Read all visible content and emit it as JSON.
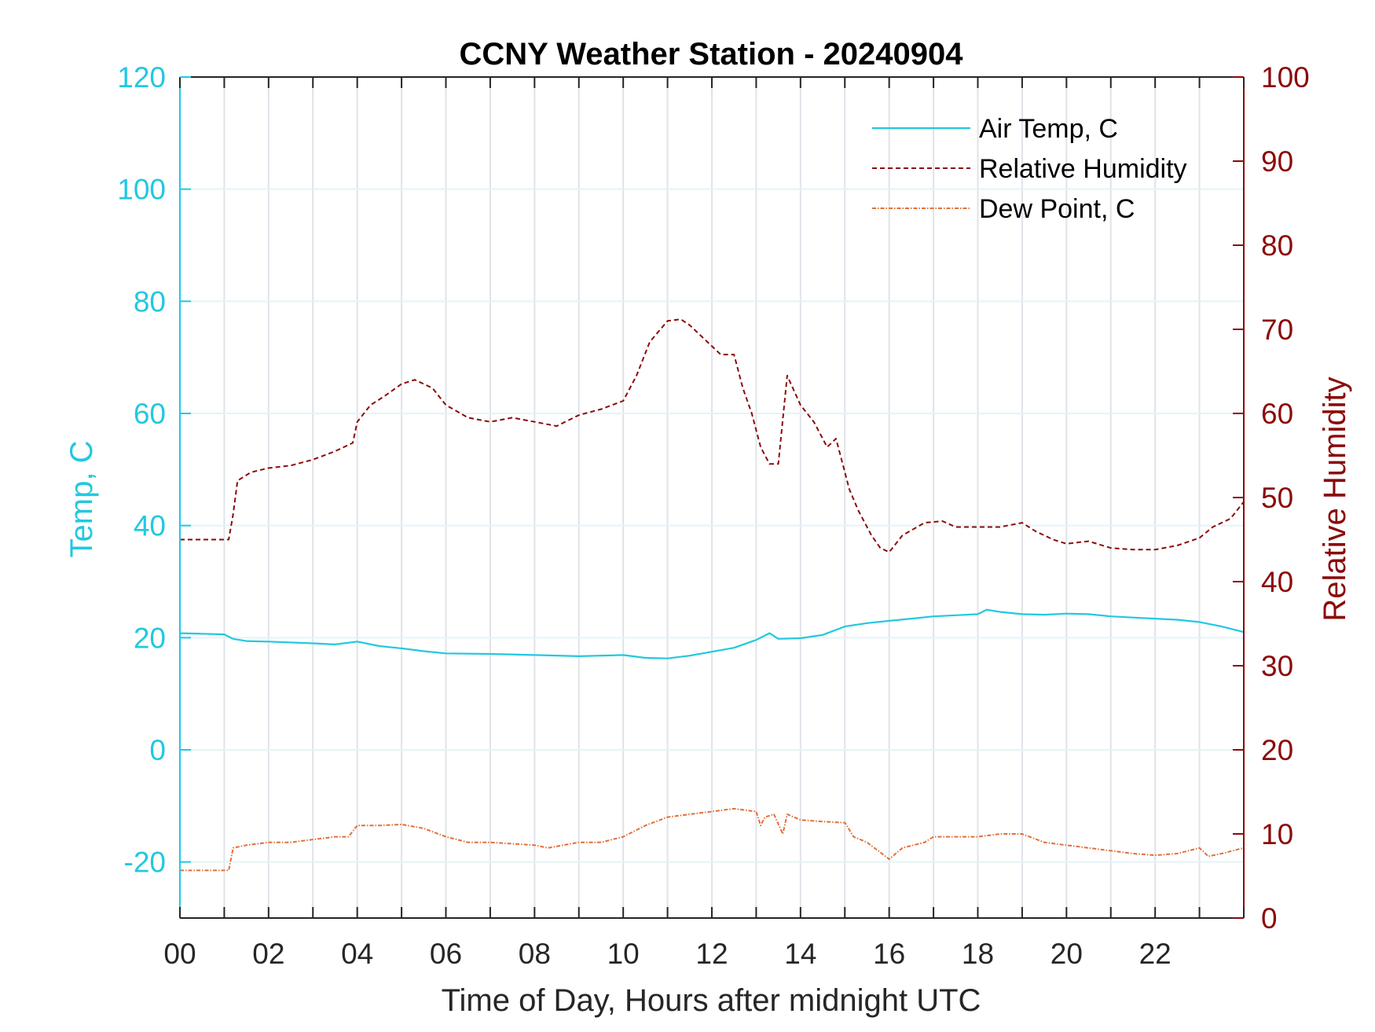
{
  "chart_data": {
    "type": "line",
    "title": "CCNY Weather Station - 20240904",
    "xlabel": "Time of Day, Hours after midnight UTC",
    "ylabel_left": "Temp, C",
    "ylabel_right": "Relative Humidity",
    "xlim": [
      0,
      24
    ],
    "ylim_left": [
      -30,
      120
    ],
    "ylim_right": [
      0,
      100
    ],
    "x_ticks": [
      0,
      2,
      4,
      6,
      8,
      10,
      12,
      14,
      16,
      18,
      20,
      22
    ],
    "x_tick_labels": [
      "00",
      "02",
      "04",
      "06",
      "08",
      "10",
      "12",
      "14",
      "16",
      "18",
      "20",
      "22"
    ],
    "y_left_ticks": [
      -20,
      0,
      20,
      40,
      60,
      80,
      100,
      120
    ],
    "y_left_tick_labels": [
      "-20",
      "0",
      "20",
      "40",
      "60",
      "80",
      "100",
      "120"
    ],
    "y_right_ticks": [
      0,
      10,
      20,
      30,
      40,
      50,
      60,
      70,
      80,
      90,
      100
    ],
    "y_right_tick_labels": [
      "0",
      "10",
      "20",
      "30",
      "40",
      "50",
      "60",
      "70",
      "80",
      "90",
      "100"
    ],
    "grid": true,
    "legend_position": "top-right",
    "colors": {
      "air_temp": "#22c8e0",
      "humidity": "#8b0a0a",
      "dew_point": "#e0703a",
      "left_axis": "#22c8e0",
      "right_axis": "#8b0a0a",
      "grid": "#dfe4ea"
    },
    "series": [
      {
        "name": "Air Temp, C",
        "axis": "left",
        "style": "solid",
        "x": [
          0,
          0.5,
          1.0,
          1.2,
          1.5,
          2,
          3,
          3.5,
          4,
          4.5,
          5,
          5.5,
          6,
          7,
          8,
          9,
          10,
          10.5,
          11,
          11.5,
          12,
          12.5,
          13,
          13.3,
          13.5,
          14,
          14.5,
          15,
          15.5,
          16,
          16.5,
          17,
          17.5,
          18,
          18.2,
          18.5,
          19,
          19.5,
          20,
          20.5,
          21,
          21.5,
          22,
          22.5,
          23,
          23.5,
          24
        ],
        "values": [
          20.8,
          20.7,
          20.6,
          19.8,
          19.4,
          19.3,
          19.0,
          18.8,
          19.3,
          18.5,
          18.1,
          17.6,
          17.2,
          17.1,
          16.9,
          16.7,
          16.9,
          16.4,
          16.3,
          16.8,
          17.5,
          18.2,
          19.6,
          20.8,
          19.8,
          19.9,
          20.5,
          22.0,
          22.6,
          23.0,
          23.4,
          23.8,
          24.0,
          24.2,
          25.0,
          24.6,
          24.2,
          24.1,
          24.3,
          24.2,
          23.8,
          23.6,
          23.4,
          23.2,
          22.8,
          22.0,
          21.0
        ]
      },
      {
        "name": "Relative Humidity",
        "axis": "right",
        "style": "dashed",
        "x": [
          0,
          0.5,
          1.1,
          1.2,
          1.3,
          1.6,
          2.0,
          2.5,
          3.0,
          3.5,
          3.9,
          4.0,
          4.3,
          4.6,
          5.0,
          5.3,
          5.7,
          6.0,
          6.5,
          7.0,
          7.5,
          8.0,
          8.5,
          9.0,
          9.5,
          10.0,
          10.3,
          10.6,
          11.0,
          11.3,
          11.5,
          11.8,
          12.2,
          12.5,
          12.7,
          12.9,
          13.1,
          13.3,
          13.5,
          13.7,
          14.0,
          14.3,
          14.6,
          14.8,
          15.0,
          15.1,
          15.3,
          15.6,
          15.8,
          16.0,
          16.3,
          16.8,
          17.2,
          17.5,
          18.0,
          18.5,
          19.0,
          19.3,
          19.7,
          20.0,
          20.5,
          21.0,
          21.5,
          22.0,
          22.5,
          23.0,
          23.3,
          23.7,
          24.0
        ],
        "values": [
          45,
          45,
          45,
          48,
          52,
          53,
          53.5,
          53.8,
          54.5,
          55.5,
          56.5,
          59,
          61,
          62,
          63.5,
          64,
          63,
          61,
          59.5,
          59,
          59.5,
          59,
          58.5,
          59.8,
          60.5,
          61.5,
          64.5,
          68.5,
          71,
          71.2,
          70.5,
          69,
          67,
          67,
          63,
          60,
          56,
          54,
          54,
          64.5,
          61,
          59,
          56,
          57,
          53,
          51,
          48.5,
          45.5,
          44,
          43.5,
          45.5,
          47,
          47.2,
          46.5,
          46.5,
          46.5,
          47,
          46,
          45,
          44.5,
          44.8,
          44,
          43.8,
          43.8,
          44.3,
          45.2,
          46.5,
          47.5,
          49.5
        ]
      },
      {
        "name": "Dew Point, C",
        "axis": "left",
        "style": "dash-dot",
        "x": [
          0,
          0.5,
          1.1,
          1.2,
          1.5,
          2.0,
          2.5,
          3.0,
          3.5,
          3.8,
          4.0,
          4.5,
          5.0,
          5.5,
          6.0,
          6.5,
          7.0,
          8.0,
          8.3,
          9.0,
          9.5,
          10.0,
          10.5,
          11.0,
          11.5,
          12.0,
          12.5,
          13.0,
          13.1,
          13.2,
          13.4,
          13.6,
          13.7,
          14.0,
          14.5,
          15.0,
          15.2,
          15.5,
          16.0,
          16.3,
          16.8,
          17.0,
          17.5,
          18.0,
          18.5,
          19.0,
          19.5,
          20.0,
          20.5,
          21.0,
          21.5,
          22.0,
          22.5,
          23.0,
          23.2,
          23.5,
          24.0
        ],
        "values": [
          -21.5,
          -21.5,
          -21.5,
          -17.5,
          -17,
          -16.5,
          -16.5,
          -16,
          -15.5,
          -15.5,
          -13.5,
          -13.5,
          -13.3,
          -14,
          -15.5,
          -16.5,
          -16.5,
          -17,
          -17.5,
          -16.5,
          -16.5,
          -15.5,
          -13.5,
          -12,
          -11.5,
          -11,
          -10.5,
          -11,
          -13.5,
          -12,
          -11.5,
          -15,
          -11.5,
          -12.5,
          -12.8,
          -13,
          -15.5,
          -16.5,
          -19.5,
          -17.5,
          -16.5,
          -15.5,
          -15.5,
          -15.5,
          -15,
          -15,
          -16.5,
          -17,
          -17.5,
          -18,
          -18.5,
          -18.8,
          -18.5,
          -17.5,
          -19,
          -18.5,
          -17.5
        ]
      }
    ]
  }
}
